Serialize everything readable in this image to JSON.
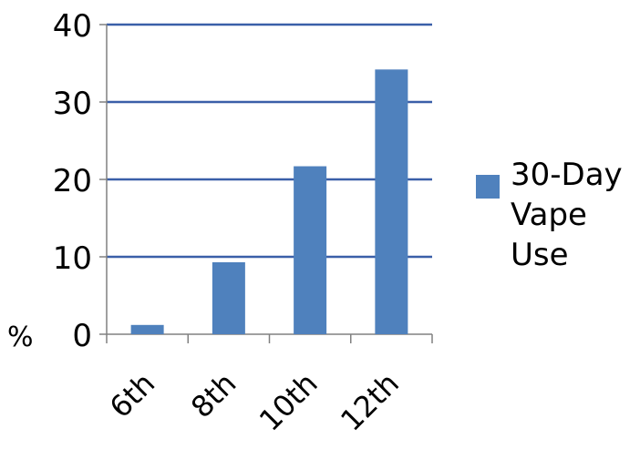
{
  "chart_data": {
    "type": "bar",
    "categories": [
      "6th",
      "8th",
      "10th",
      "12th"
    ],
    "series": [
      {
        "name": "30-Day Vape Use",
        "values": [
          1.2,
          9.3,
          21.7,
          34.2
        ],
        "color": "#4f81bd"
      }
    ],
    "ylabel": "%",
    "ylim": [
      0,
      40
    ],
    "yticks": [
      0,
      10,
      20,
      30,
      40
    ],
    "grid": true,
    "gridline_color": "#3a5fa8",
    "legend_position": "right",
    "legend_lines": [
      "30-Day",
      "Vape",
      "Use"
    ]
  }
}
